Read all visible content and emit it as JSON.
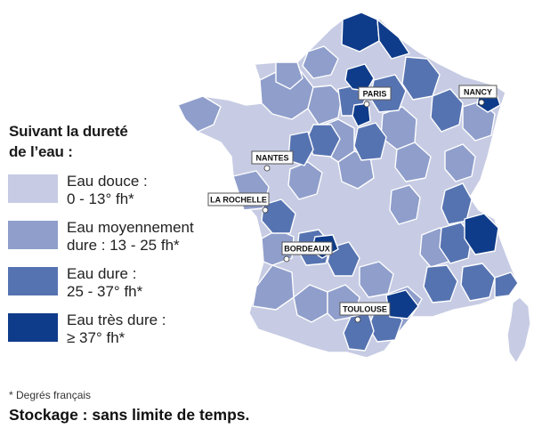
{
  "legend": {
    "title_line1": "Suivant la dureté",
    "title_line2": "de l’eau :",
    "classes": [
      {
        "line1": "Eau douce :",
        "line2": "0 - 13° fh*",
        "color": "#c7cce4"
      },
      {
        "line1": "Eau moyennement",
        "line2": "dure : 13 - 25 fh*",
        "color": "#8f9ecb"
      },
      {
        "line1": "Eau dure :",
        "line2": "25 - 37° fh*",
        "color": "#5673b1"
      },
      {
        "line1": "Eau très dure :",
        "line2": "≥  37° fh*",
        "color": "#0f3c8a"
      }
    ]
  },
  "cities": [
    {
      "name": "PARIS"
    },
    {
      "name": "NANCY"
    },
    {
      "name": "NANTES"
    },
    {
      "name": "LA ROCHELLE"
    },
    {
      "name": "BORDEAUX"
    },
    {
      "name": "TOULOUSE"
    }
  ],
  "footnote": "* Degrés français",
  "storage": "Stockage : sans limite de temps."
}
